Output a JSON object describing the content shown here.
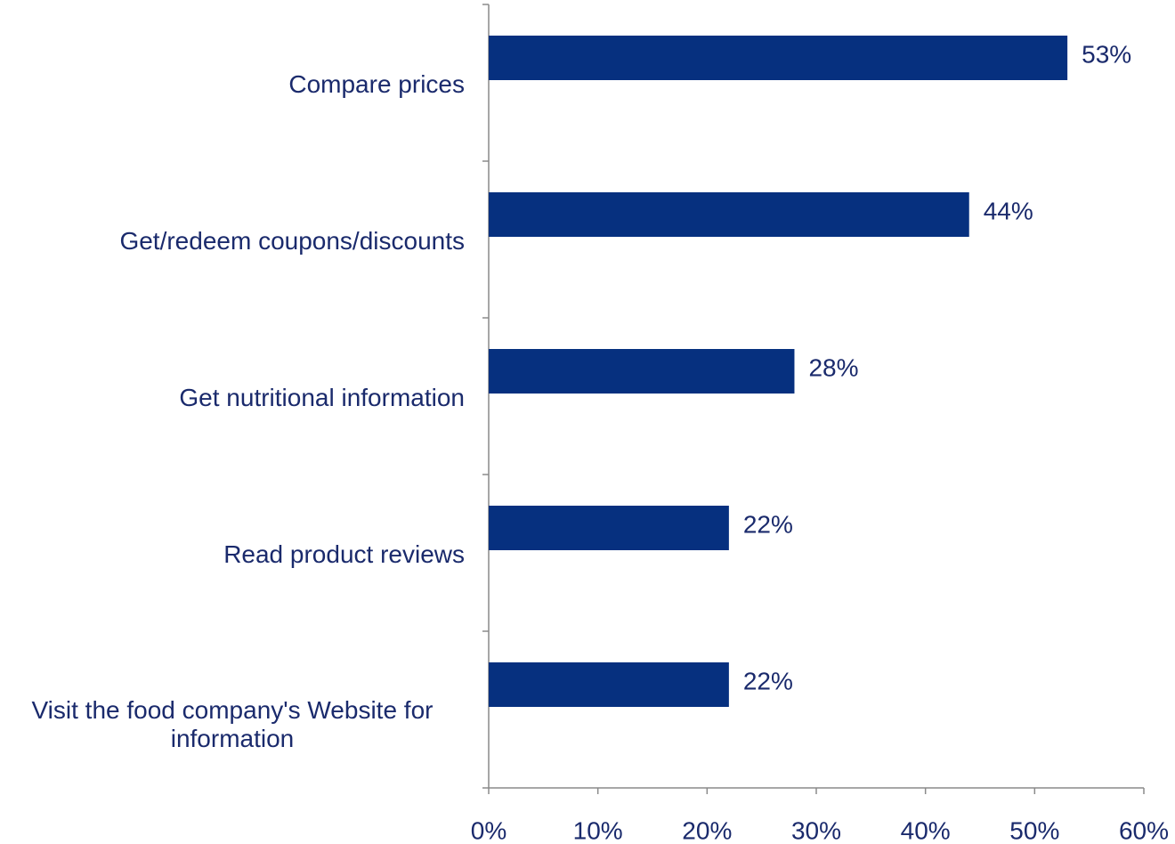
{
  "chart_data": {
    "type": "bar",
    "orientation": "horizontal",
    "categories": [
      "Compare prices",
      "Get/redeem coupons/discounts",
      "Get nutritional information",
      "Read product reviews",
      "Visit the food company's Website for information"
    ],
    "values": [
      53,
      44,
      28,
      22,
      22
    ],
    "value_labels": [
      "53%",
      "44%",
      "28%",
      "22%",
      "22%"
    ],
    "color": "#06307f",
    "xlim": [
      0,
      60
    ],
    "xticks": [
      {
        "value": 0,
        "label": "0%"
      },
      {
        "value": 10,
        "label": "10%"
      },
      {
        "value": 20,
        "label": "20%"
      },
      {
        "value": 30,
        "label": "30%"
      },
      {
        "value": 40,
        "label": "40%"
      },
      {
        "value": 50,
        "label": "50%"
      },
      {
        "value": 60,
        "label": "60%"
      }
    ]
  }
}
